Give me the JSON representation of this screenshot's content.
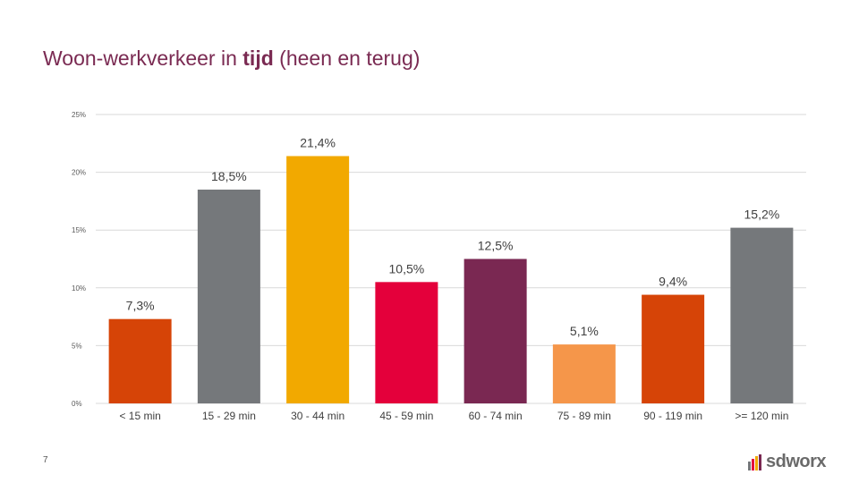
{
  "slide": {
    "title_prefix": "Woon-werkverkeer in ",
    "title_bold": "tijd",
    "title_suffix": " (heen en terug)",
    "page_number": "7",
    "brand": "sdworx"
  },
  "chart_data": {
    "type": "bar",
    "title": "Woon-werkverkeer in tijd (heen en terug)",
    "xlabel": "",
    "ylabel": "",
    "ylim": [
      0,
      25
    ],
    "grid": true,
    "yticks": [
      0,
      5,
      10,
      15,
      20,
      25
    ],
    "ytick_labels": [
      "0%",
      "5%",
      "10%",
      "15%",
      "20%",
      "25%"
    ],
    "categories": [
      "< 15 min",
      "15 - 29 min",
      "30 - 44 min",
      "45 - 59 min",
      "60 - 74 min",
      "75 - 89 min",
      "90 - 119 min",
      ">= 120 min"
    ],
    "values": [
      7.3,
      18.5,
      21.4,
      10.5,
      12.5,
      5.1,
      9.4,
      15.2
    ],
    "value_labels": [
      "7,3%",
      "18,5%",
      "21,4%",
      "10,5%",
      "12,5%",
      "5,1%",
      "9,4%",
      "15,2%"
    ],
    "colors": [
      "#d64407",
      "#75787b",
      "#f2a900",
      "#e4003b",
      "#7a2852",
      "#f5964a",
      "#d64407",
      "#75787b"
    ]
  },
  "colors": {
    "title": "#7a2a52",
    "grid": "#d9d9d9",
    "logo_red": "#e4003b",
    "logo_orange": "#f2a900",
    "logo_purple": "#7a2852",
    "logo_gray": "#75787b"
  }
}
